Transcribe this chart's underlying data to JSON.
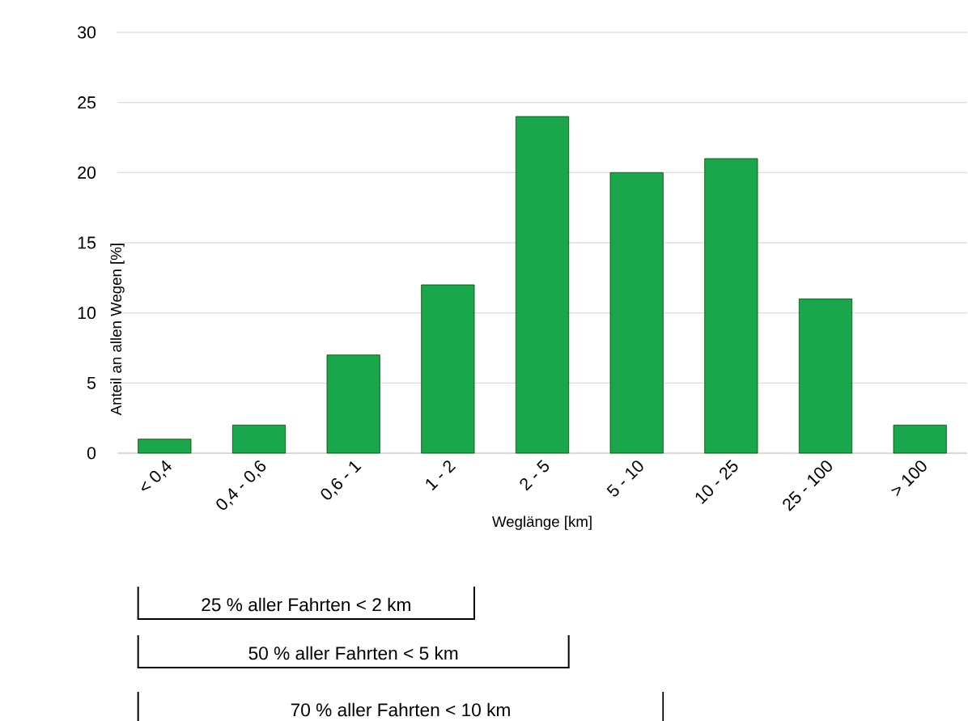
{
  "chart_data": {
    "type": "bar",
    "xlabel": "Weglänge [km]",
    "ylabel": "Anteil an allen Wegen [%]",
    "categories": [
      "< 0,4",
      "0,4 - 0,6",
      "0,6 - 1",
      "1 - 2",
      "2 - 5",
      "5 - 10",
      "10 - 25",
      "25 - 100",
      "> 100"
    ],
    "values": [
      1,
      2,
      7,
      12,
      24,
      20,
      21,
      11,
      2
    ],
    "color": "#1aa64a",
    "ylim": [
      0,
      30
    ],
    "yticks": [
      0,
      5,
      10,
      15,
      20,
      25,
      30
    ],
    "grid": "y",
    "annotations": [
      "25 % aller Fahrten < 2 km",
      "50 % aller Fahrten < 5 km",
      "70 % aller Fahrten < 10 km"
    ]
  }
}
